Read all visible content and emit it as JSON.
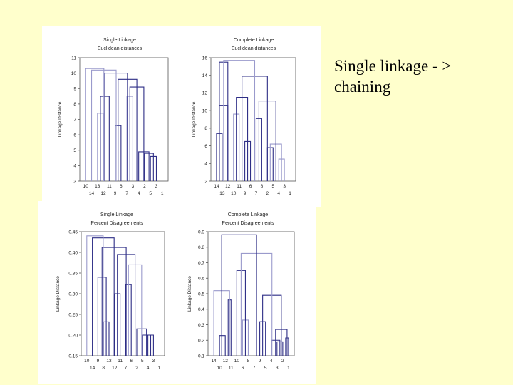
{
  "caption": {
    "line1": "Single linkage - >",
    "line2": "chaining"
  },
  "colors": {
    "background": "#FFFFCC",
    "panel": "#FFFFFF",
    "dark_line": "#2E2E86",
    "light_line": "#9A9ACC",
    "axis": "#555555"
  },
  "chart_data": [
    {
      "type": "dendrogram",
      "title": "Single Linkage",
      "subtitle": "Euclidean distances",
      "ylabel": "Linkage Distance",
      "ylim": [
        3,
        11
      ],
      "yticks": [
        3,
        4,
        5,
        6,
        7,
        8,
        9,
        10,
        11
      ],
      "leaves_top": [
        "10",
        "13",
        "11",
        "6",
        "3",
        "2",
        "3"
      ],
      "leaves_bottom": [
        "14",
        "12",
        "9",
        "7",
        "4",
        "5",
        "1"
      ],
      "merges": [
        {
          "a": 12,
          "b": 13,
          "h": 4.6,
          "tone": "dark"
        },
        {
          "a": 11,
          "b": 12.5,
          "h": 4.8,
          "tone": "dark"
        },
        {
          "a": 10,
          "b": 11.75,
          "h": 4.9,
          "tone": "dark"
        },
        {
          "a": 8,
          "b": 9,
          "h": 8.5,
          "tone": "light"
        },
        {
          "a": 8.5,
          "b": 10.875,
          "h": 9.1,
          "tone": "dark"
        },
        {
          "a": 6,
          "b": 7,
          "h": 6.6,
          "tone": "dark"
        },
        {
          "a": 6.5,
          "b": 9.6875,
          "h": 9.6,
          "tone": "dark"
        },
        {
          "a": 3,
          "b": 4,
          "h": 7.4,
          "tone": "light"
        },
        {
          "a": 3.5,
          "b": 5,
          "h": 8.5,
          "tone": "dark"
        },
        {
          "a": 4.25,
          "b": 8.09,
          "h": 10.0,
          "tone": "dark"
        },
        {
          "a": 2,
          "b": 6.17,
          "h": 10.2,
          "tone": "light"
        },
        {
          "a": 1,
          "b": 4.09,
          "h": 10.3,
          "tone": "light"
        }
      ]
    },
    {
      "type": "dendrogram",
      "title": "Complete Linkage",
      "subtitle": "Euclidean distances",
      "ylabel": "Linkage Distance",
      "ylim": [
        2,
        16
      ],
      "yticks": [
        2,
        4,
        6,
        8,
        10,
        12,
        14,
        16
      ],
      "leaves_top": [
        "14",
        "12",
        "11",
        "6",
        "8",
        "5",
        "3"
      ],
      "leaves_bottom": [
        "13",
        "10",
        "9",
        "7",
        "2",
        "4",
        "1"
      ],
      "merges": [
        {
          "a": 1,
          "b": 2,
          "h": 7.4,
          "tone": "dark"
        },
        {
          "a": 1.5,
          "b": 3,
          "h": 10.6,
          "tone": "dark"
        },
        {
          "a": 4,
          "b": 5,
          "h": 9.6,
          "tone": "light"
        },
        {
          "a": 6,
          "b": 7,
          "h": 6.5,
          "tone": "dark"
        },
        {
          "a": 4.5,
          "b": 6.5,
          "h": 11.5,
          "tone": "dark"
        },
        {
          "a": 1.5,
          "b": 3,
          "h": 15.5,
          "tone": "dark"
        },
        {
          "a": 10,
          "b": 11,
          "h": 5.8,
          "tone": "dark"
        },
        {
          "a": 12,
          "b": 13,
          "h": 4.5,
          "tone": "light"
        },
        {
          "a": 10.5,
          "b": 12.5,
          "h": 6.2,
          "tone": "light"
        },
        {
          "a": 8,
          "b": 9,
          "h": 9.1,
          "tone": "dark"
        },
        {
          "a": 8.5,
          "b": 11.5,
          "h": 11.1,
          "tone": "dark"
        },
        {
          "a": 5.5,
          "b": 10,
          "h": 13.9,
          "tone": "dark"
        },
        {
          "a": 2.25,
          "b": 7.75,
          "h": 15.7,
          "tone": "light"
        }
      ]
    },
    {
      "type": "dendrogram",
      "title": "Single Linkage",
      "subtitle": "Percent Disagreements",
      "ylabel": "Linkage Distance",
      "ylim": [
        0.15,
        0.45
      ],
      "yticks": [
        "0.15",
        "0.20",
        "0.25",
        "0.30",
        "0.35",
        "0.40",
        "0.45"
      ],
      "leaves_top": [
        "10",
        "9",
        "13",
        "11",
        "6",
        "5",
        "3"
      ],
      "leaves_bottom": [
        "14",
        "8",
        "12",
        "7",
        "2",
        "4",
        "1"
      ],
      "merges": [
        {
          "a": 12,
          "b": 13,
          "h": 0.2,
          "tone": "dark"
        },
        {
          "a": 11,
          "b": 12.5,
          "h": 0.2,
          "tone": "dark"
        },
        {
          "a": 10,
          "b": 11.75,
          "h": 0.215,
          "tone": "dark"
        },
        {
          "a": 8,
          "b": 9,
          "h": 0.322,
          "tone": "dark"
        },
        {
          "a": 8.5,
          "b": 10.875,
          "h": 0.37,
          "tone": "light"
        },
        {
          "a": 6,
          "b": 7,
          "h": 0.3,
          "tone": "dark"
        },
        {
          "a": 6.5,
          "b": 9.69,
          "h": 0.395,
          "tone": "dark"
        },
        {
          "a": 4,
          "b": 5,
          "h": 0.232,
          "tone": "dark"
        },
        {
          "a": 3,
          "b": 4.5,
          "h": 0.34,
          "tone": "dark"
        },
        {
          "a": 3.75,
          "b": 8.09,
          "h": 0.412,
          "tone": "dark"
        },
        {
          "a": 2,
          "b": 5.92,
          "h": 0.435,
          "tone": "dark"
        },
        {
          "a": 1,
          "b": 3.96,
          "h": 0.44,
          "tone": "light"
        }
      ]
    },
    {
      "type": "dendrogram",
      "title": "Complete Linkage",
      "subtitle": "Percent Disagreements",
      "ylabel": "Linkage Distance",
      "ylim": [
        0.1,
        0.9
      ],
      "yticks": [
        "0.1",
        "0.2",
        "0.3",
        "0.4",
        "0.5",
        "0.6",
        "0.7",
        "0.8",
        "0.9"
      ],
      "leaves_top": [
        "14",
        "12",
        "10",
        "8",
        "9",
        "4",
        "2"
      ],
      "leaves_bottom": [
        "10",
        "11",
        "6",
        "7",
        "5",
        "3",
        "1"
      ],
      "merges": [
        {
          "a": 12,
          "b": 13,
          "h": 0.19,
          "tone": "dark"
        },
        {
          "a": 11,
          "b": 12.5,
          "h": 0.2,
          "tone": "dark"
        },
        {
          "a": 13.5,
          "b": 14,
          "h": 0.215,
          "tone": "dark"
        },
        {
          "a": 11.75,
          "b": 13.75,
          "h": 0.27,
          "tone": "dark"
        },
        {
          "a": 9,
          "b": 10,
          "h": 0.32,
          "tone": "dark"
        },
        {
          "a": 9.5,
          "b": 12.75,
          "h": 0.49,
          "tone": "dark"
        },
        {
          "a": 6,
          "b": 7,
          "h": 0.33,
          "tone": "light"
        },
        {
          "a": 5,
          "b": 6.5,
          "h": 0.65,
          "tone": "dark"
        },
        {
          "a": 5.75,
          "b": 11.125,
          "h": 0.76,
          "tone": "light"
        },
        {
          "a": 2,
          "b": 3,
          "h": 0.23,
          "tone": "dark"
        },
        {
          "a": 3.5,
          "b": 4,
          "h": 0.46,
          "tone": "dark"
        },
        {
          "a": 1,
          "b": 3.75,
          "h": 0.52,
          "tone": "light"
        },
        {
          "a": 2.375,
          "b": 8.44,
          "h": 0.88,
          "tone": "dark"
        }
      ]
    }
  ]
}
